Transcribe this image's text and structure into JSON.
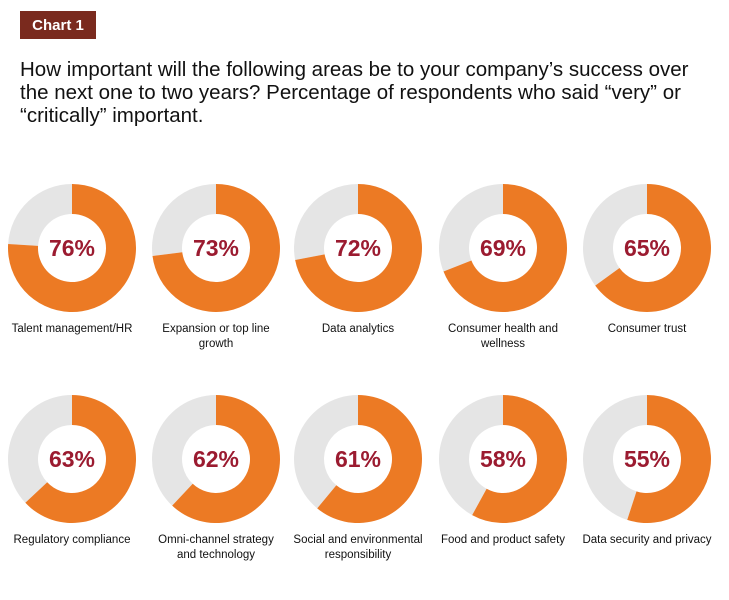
{
  "header": {
    "badge": "Chart 1",
    "title": "How important will the following areas be to your company’s success over the next one to two years? Percentage of respondents who said “very” or “critically” important."
  },
  "colors": {
    "filled": "#ec7a24",
    "remainder": "#e5e5e5",
    "value_text": "#9b1b30",
    "badge": "#7a2a1e"
  },
  "chart_data": {
    "type": "pie",
    "subtype": "donut",
    "unit": "%",
    "categories": [
      "Talent management/HR",
      "Expansion or top line growth",
      "Data analytics",
      "Consumer health and wellness",
      "Consumer trust",
      "Regulatory compliance",
      "Omni-channel strategy and technology",
      "Social and environmental responsibility",
      "Food and product safety",
      "Data security and privacy"
    ],
    "values": [
      76,
      73,
      72,
      69,
      65,
      63,
      62,
      61,
      58,
      55
    ],
    "value_labels": [
      "76%",
      "73%",
      "72%",
      "69%",
      "65%",
      "63%",
      "62%",
      "61%",
      "58%",
      "55%"
    ],
    "layout": "2 rows x 5 columns"
  }
}
